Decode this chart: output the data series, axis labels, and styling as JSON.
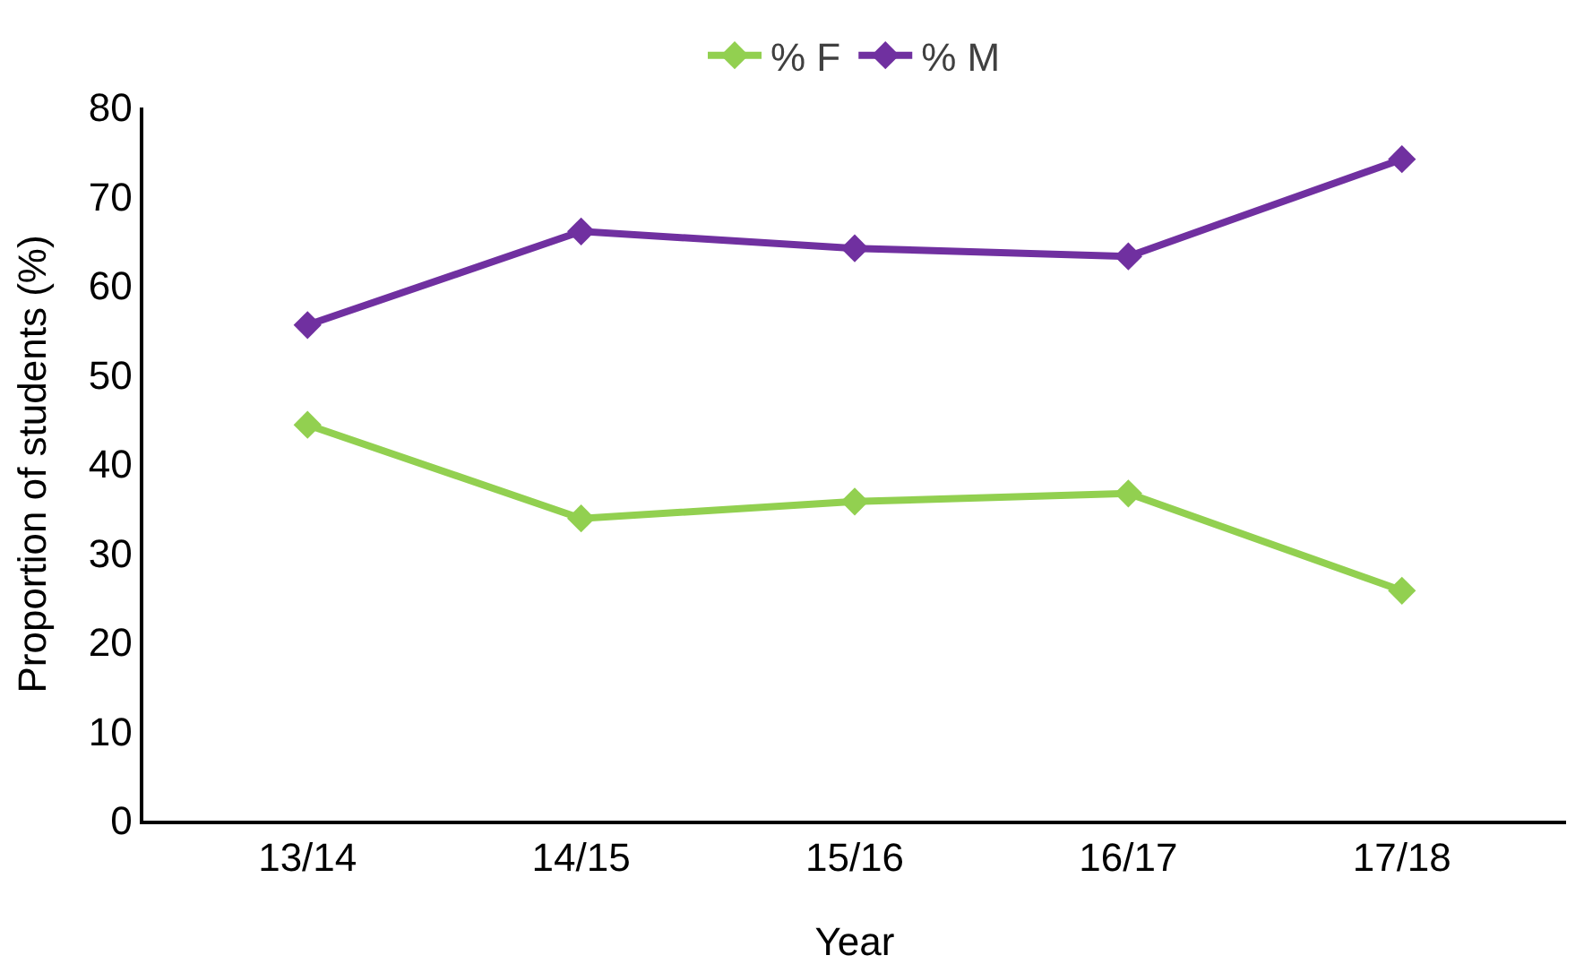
{
  "chart_data": {
    "type": "line",
    "xlabel": "Year",
    "ylabel": "Proportion of students (%)",
    "categories": [
      "13/14",
      "14/15",
      "15/16",
      "16/17",
      "17/18"
    ],
    "series": [
      {
        "name": "% F",
        "color": "#92d050",
        "values": [
          44.4,
          33.9,
          35.8,
          36.7,
          25.8
        ]
      },
      {
        "name": "% M",
        "color": "#7030a0",
        "values": [
          55.6,
          66.1,
          64.2,
          63.3,
          74.2
        ]
      }
    ],
    "ylim": [
      0,
      80
    ],
    "yticks": [
      0,
      10,
      20,
      30,
      40,
      50,
      60,
      70,
      80
    ],
    "grid": false,
    "legend": "top",
    "marker": "diamond",
    "line_style": "solid"
  }
}
